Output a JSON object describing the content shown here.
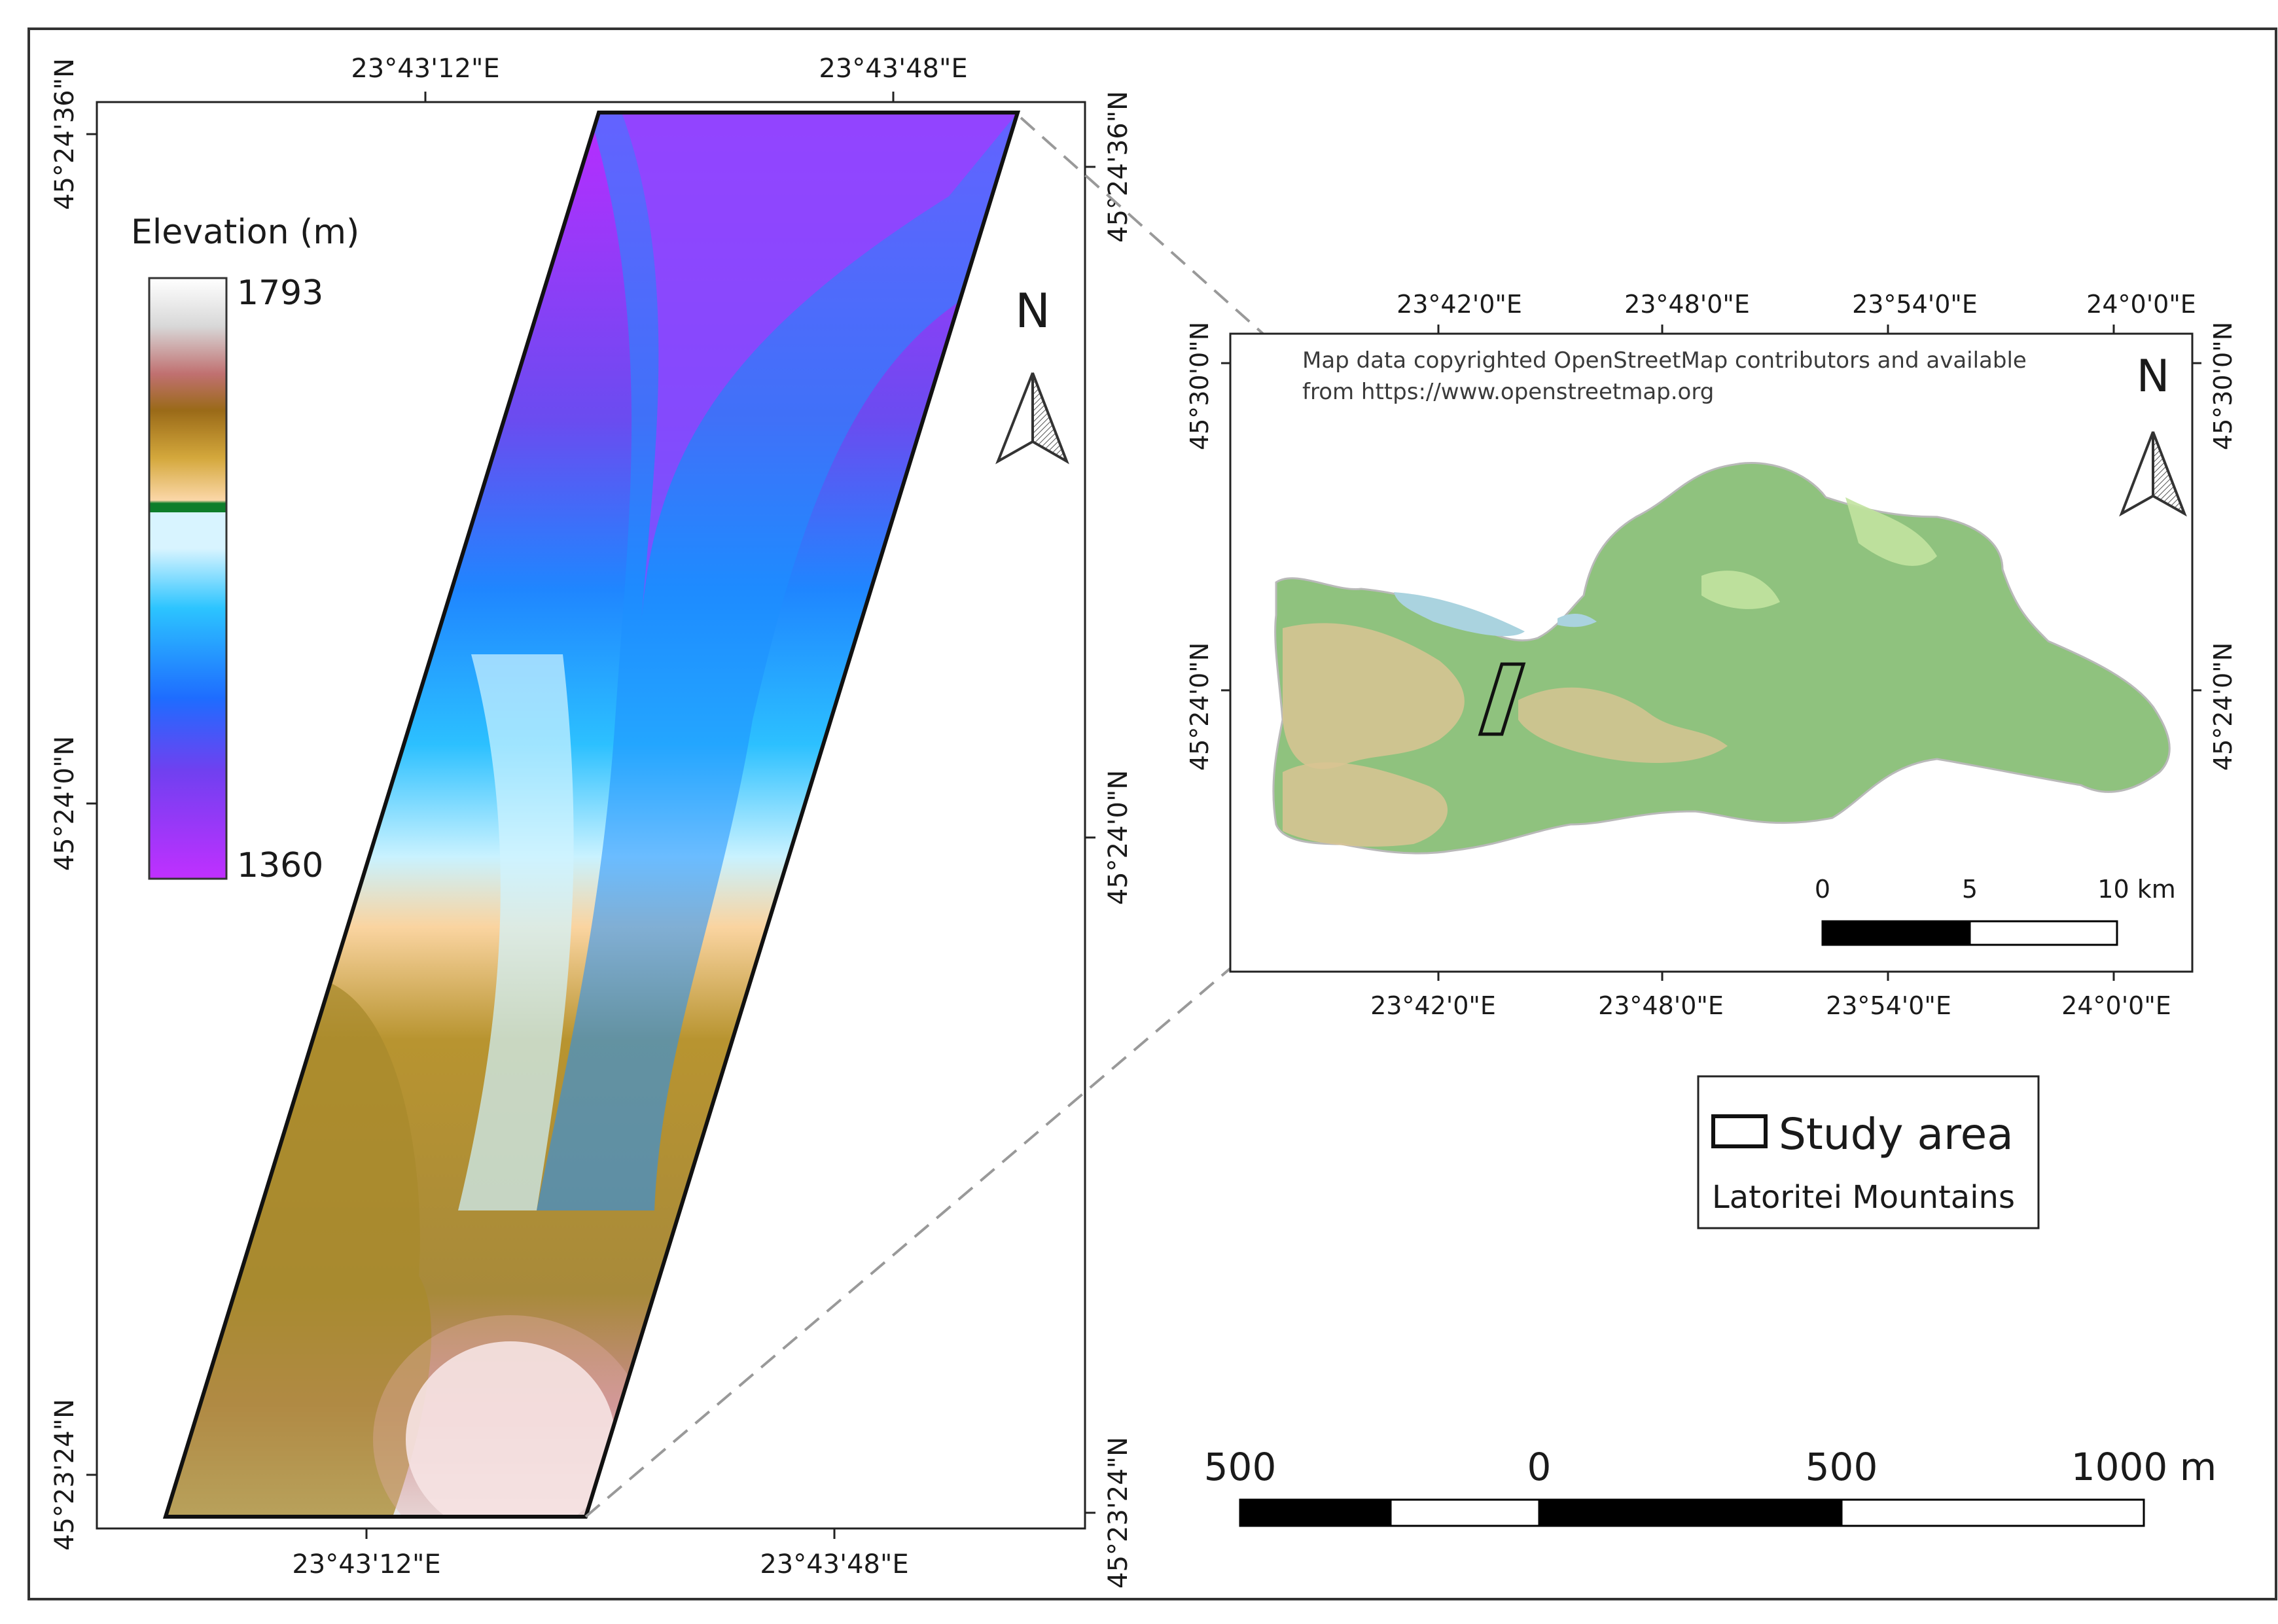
{
  "main_map": {
    "top_ticks": [
      "23°43'12\"E",
      "23°43'48\"E"
    ],
    "bottom_ticks": [
      "23°43'12\"E",
      "23°43'48\"E"
    ],
    "left_ticks": [
      "45°24'36\"N",
      "45°24'0\"N",
      "45°23'24\"N"
    ],
    "right_ticks": [
      "45°24'36\"N",
      "45°24'0\"N",
      "45°23'24\"N"
    ],
    "north_label": "N"
  },
  "elevation_legend": {
    "title": "Elevation (m)",
    "max": "1793",
    "min": "1360"
  },
  "inset_map": {
    "top_ticks": [
      "23°42'0\"E",
      "23°48'0\"E",
      "23°54'0\"E",
      "24°0'0\"E"
    ],
    "bottom_ticks": [
      "23°42'0\"E",
      "23°48'0\"E",
      "23°54'0\"E",
      "24°0'0\"E"
    ],
    "left_ticks": [
      "45°30'0\"N",
      "45°24'0\"N"
    ],
    "right_ticks": [
      "45°30'0\"N",
      "45°24'0\"N"
    ],
    "attribution_line1": "Map data copyrighted OpenStreetMap contributors and available",
    "attribution_line2": "from https://www.openstreetmap.org",
    "north_label": "N",
    "scalebar": {
      "labels": [
        "0",
        "5",
        "10 km"
      ]
    }
  },
  "legend_box": {
    "study_area": "Study area",
    "region": "Latoritei Mountains"
  },
  "main_scalebar": {
    "labels": [
      "500",
      "0",
      "500",
      "1000 m"
    ]
  },
  "colors": {
    "lowest": "#c030ff",
    "low": "#1ea0ff",
    "mid": "#c8f0ff",
    "band": "#0d7d2a",
    "upper": "#a07820",
    "high": "#c07070",
    "highest": "#ffffff",
    "forest": "#8fc27e",
    "grassland": "#d9c493",
    "water": "#aad3df"
  }
}
